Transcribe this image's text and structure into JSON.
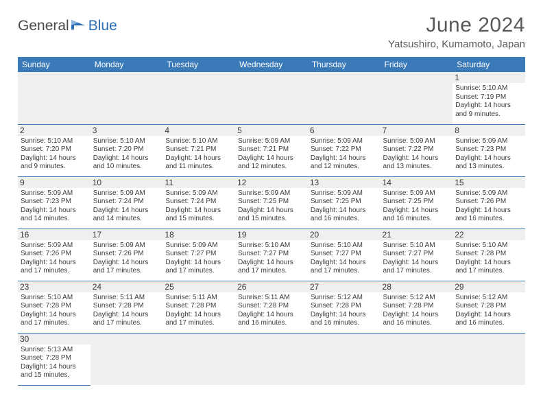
{
  "brand": {
    "part1": "General",
    "part2": "Blue"
  },
  "title": "June 2024",
  "location": "Yatsushiro, Kumamoto, Japan",
  "colors": {
    "header_bg": "#3a7ab8",
    "header_text": "#ffffff",
    "text": "#3a3a3a",
    "muted": "#595959",
    "row_divider": "#3a7ab8",
    "daynum_bg": "#efefef",
    "logo_blue": "#2a6db5"
  },
  "weekdays": [
    "Sunday",
    "Monday",
    "Tuesday",
    "Wednesday",
    "Thursday",
    "Friday",
    "Saturday"
  ],
  "days": {
    "1": {
      "sunrise": "5:10 AM",
      "sunset": "7:19 PM",
      "daylight": "14 hours and 9 minutes."
    },
    "2": {
      "sunrise": "5:10 AM",
      "sunset": "7:20 PM",
      "daylight": "14 hours and 9 minutes."
    },
    "3": {
      "sunrise": "5:10 AM",
      "sunset": "7:20 PM",
      "daylight": "14 hours and 10 minutes."
    },
    "4": {
      "sunrise": "5:10 AM",
      "sunset": "7:21 PM",
      "daylight": "14 hours and 11 minutes."
    },
    "5": {
      "sunrise": "5:09 AM",
      "sunset": "7:21 PM",
      "daylight": "14 hours and 12 minutes."
    },
    "6": {
      "sunrise": "5:09 AM",
      "sunset": "7:22 PM",
      "daylight": "14 hours and 12 minutes."
    },
    "7": {
      "sunrise": "5:09 AM",
      "sunset": "7:22 PM",
      "daylight": "14 hours and 13 minutes."
    },
    "8": {
      "sunrise": "5:09 AM",
      "sunset": "7:23 PM",
      "daylight": "14 hours and 13 minutes."
    },
    "9": {
      "sunrise": "5:09 AM",
      "sunset": "7:23 PM",
      "daylight": "14 hours and 14 minutes."
    },
    "10": {
      "sunrise": "5:09 AM",
      "sunset": "7:24 PM",
      "daylight": "14 hours and 14 minutes."
    },
    "11": {
      "sunrise": "5:09 AM",
      "sunset": "7:24 PM",
      "daylight": "14 hours and 15 minutes."
    },
    "12": {
      "sunrise": "5:09 AM",
      "sunset": "7:25 PM",
      "daylight": "14 hours and 15 minutes."
    },
    "13": {
      "sunrise": "5:09 AM",
      "sunset": "7:25 PM",
      "daylight": "14 hours and 16 minutes."
    },
    "14": {
      "sunrise": "5:09 AM",
      "sunset": "7:25 PM",
      "daylight": "14 hours and 16 minutes."
    },
    "15": {
      "sunrise": "5:09 AM",
      "sunset": "7:26 PM",
      "daylight": "14 hours and 16 minutes."
    },
    "16": {
      "sunrise": "5:09 AM",
      "sunset": "7:26 PM",
      "daylight": "14 hours and 17 minutes."
    },
    "17": {
      "sunrise": "5:09 AM",
      "sunset": "7:26 PM",
      "daylight": "14 hours and 17 minutes."
    },
    "18": {
      "sunrise": "5:09 AM",
      "sunset": "7:27 PM",
      "daylight": "14 hours and 17 minutes."
    },
    "19": {
      "sunrise": "5:10 AM",
      "sunset": "7:27 PM",
      "daylight": "14 hours and 17 minutes."
    },
    "20": {
      "sunrise": "5:10 AM",
      "sunset": "7:27 PM",
      "daylight": "14 hours and 17 minutes."
    },
    "21": {
      "sunrise": "5:10 AM",
      "sunset": "7:27 PM",
      "daylight": "14 hours and 17 minutes."
    },
    "22": {
      "sunrise": "5:10 AM",
      "sunset": "7:28 PM",
      "daylight": "14 hours and 17 minutes."
    },
    "23": {
      "sunrise": "5:10 AM",
      "sunset": "7:28 PM",
      "daylight": "14 hours and 17 minutes."
    },
    "24": {
      "sunrise": "5:11 AM",
      "sunset": "7:28 PM",
      "daylight": "14 hours and 17 minutes."
    },
    "25": {
      "sunrise": "5:11 AM",
      "sunset": "7:28 PM",
      "daylight": "14 hours and 17 minutes."
    },
    "26": {
      "sunrise": "5:11 AM",
      "sunset": "7:28 PM",
      "daylight": "14 hours and 16 minutes."
    },
    "27": {
      "sunrise": "5:12 AM",
      "sunset": "7:28 PM",
      "daylight": "14 hours and 16 minutes."
    },
    "28": {
      "sunrise": "5:12 AM",
      "sunset": "7:28 PM",
      "daylight": "14 hours and 16 minutes."
    },
    "29": {
      "sunrise": "5:12 AM",
      "sunset": "7:28 PM",
      "daylight": "14 hours and 16 minutes."
    },
    "30": {
      "sunrise": "5:13 AM",
      "sunset": "7:28 PM",
      "daylight": "14 hours and 15 minutes."
    }
  },
  "layout": {
    "first_weekday_index": 6,
    "num_days": 30
  }
}
